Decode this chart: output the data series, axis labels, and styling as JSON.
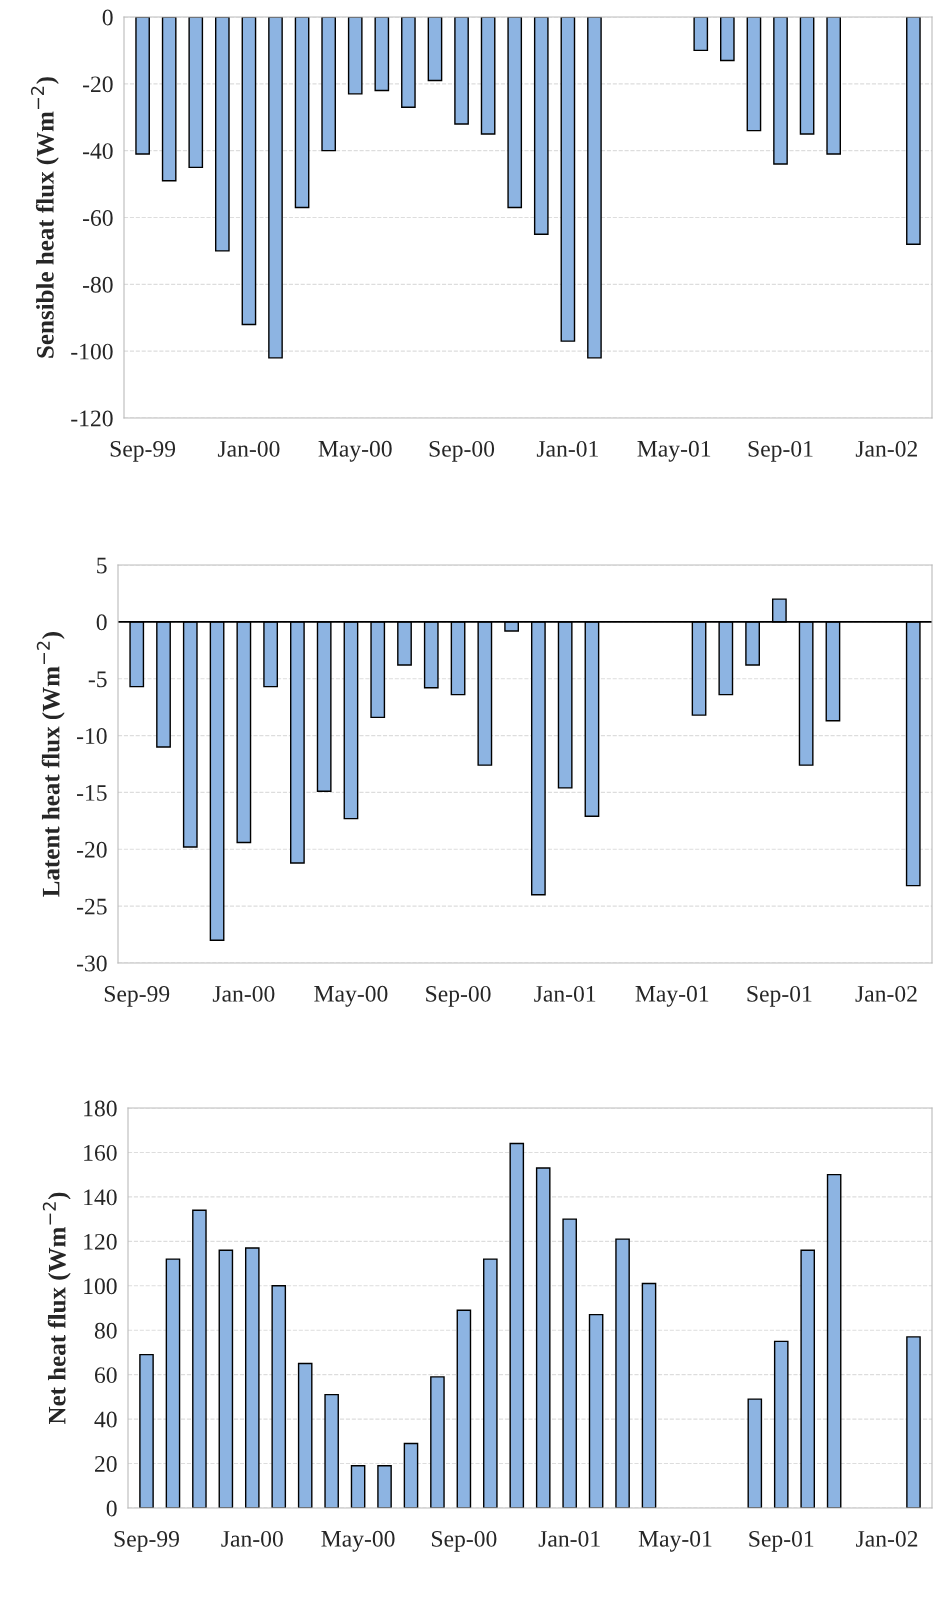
{
  "chart_data": [
    {
      "type": "bar",
      "ylabel": "Sensible heat flux (Wm$^{−2}$)",
      "categories": [
        "Sep-99",
        null,
        null,
        null,
        "Jan-00",
        null,
        null,
        null,
        "May-00",
        null,
        null,
        null,
        "Sep-00",
        null,
        null,
        null,
        "Jan-01",
        null,
        null,
        null,
        "May-01",
        null,
        null,
        null,
        "Sep-01",
        null,
        null,
        null,
        "Jan-02",
        null
      ],
      "series": [
        {
          "color": "#8db4e2",
          "values": [
            -41,
            -49,
            -45,
            -70,
            -92,
            -102,
            -57,
            -40,
            -23,
            -22,
            -27,
            -19,
            -32,
            -35,
            -57,
            -65,
            -97,
            -102,
            null,
            null,
            null,
            -10,
            -13,
            -34,
            -44,
            -35,
            -41,
            null,
            null,
            -68
          ]
        }
      ],
      "ylim": [
        -120,
        0
      ],
      "yticks": [
        -120,
        -100,
        -80,
        -60,
        -40,
        -20,
        0
      ],
      "grid": "y"
    },
    {
      "type": "bar",
      "ylabel": "Latent heat flux (Wm$^{−2}$)",
      "categories": [
        "Sep-99",
        null,
        null,
        null,
        "Jan-00",
        null,
        null,
        null,
        "May-00",
        null,
        null,
        null,
        "Sep-00",
        null,
        null,
        null,
        "Jan-01",
        null,
        null,
        null,
        "May-01",
        null,
        null,
        null,
        "Sep-01",
        null,
        null,
        null,
        "Jan-02",
        null
      ],
      "series": [
        {
          "color": "#8db4e2",
          "values": [
            -5.7,
            -11,
            -19.8,
            -28,
            -19.4,
            -5.7,
            -21.2,
            -14.9,
            -17.3,
            -8.4,
            -3.8,
            -5.8,
            -6.4,
            -12.6,
            -0.8,
            -24,
            -14.6,
            -17.1,
            null,
            null,
            null,
            -8.2,
            -6.4,
            -3.8,
            2,
            -12.6,
            -8.7,
            null,
            null,
            -23.2
          ]
        }
      ],
      "ylim": [
        -30,
        5
      ],
      "yticks": [
        -30,
        -25,
        -20,
        -15,
        -10,
        -5,
        0,
        5
      ],
      "grid": "y",
      "ref_lines": [
        {
          "axis": "y",
          "value": 0,
          "color": "#000000"
        }
      ]
    },
    {
      "type": "bar",
      "ylabel": "Net heat flux (Wm$^{−2}$)",
      "categories": [
        "Sep-99",
        null,
        null,
        null,
        "Jan-00",
        null,
        null,
        null,
        "May-00",
        null,
        null,
        null,
        "Sep-00",
        null,
        null,
        null,
        "Jan-01",
        null,
        null,
        null,
        "May-01",
        null,
        null,
        null,
        "Sep-01",
        null,
        null,
        null,
        "Jan-02",
        null
      ],
      "series": [
        {
          "color": "#8db4e2",
          "values": [
            69,
            112,
            134,
            116,
            117,
            100,
            65,
            51,
            19,
            19,
            29,
            59,
            89,
            112,
            164,
            153,
            130,
            87,
            121,
            101,
            null,
            null,
            null,
            49,
            75,
            116,
            150,
            null,
            null,
            77
          ]
        }
      ],
      "ylim": [
        0,
        180
      ],
      "yticks": [
        0,
        20,
        40,
        60,
        80,
        100,
        120,
        140,
        160,
        180
      ],
      "grid": "y"
    }
  ]
}
